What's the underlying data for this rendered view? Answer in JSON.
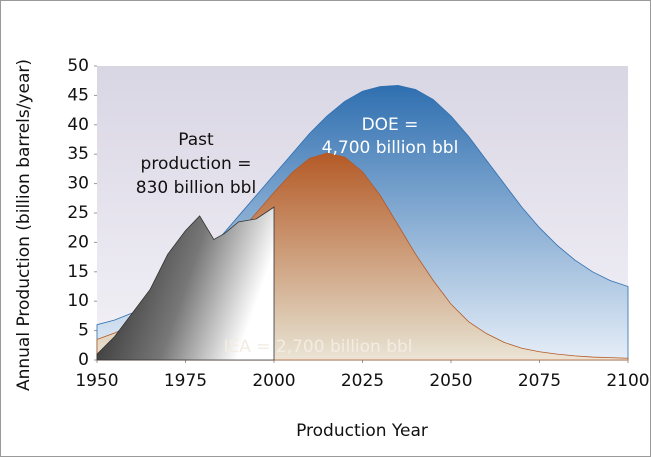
{
  "chart_data": {
    "type": "area",
    "xlabel": "Production Year",
    "ylabel": "Annual Production (billion barrels/year)",
    "xlim": [
      1950,
      2100
    ],
    "xticks": [
      1950,
      1975,
      2000,
      2025,
      2050,
      2075,
      2100
    ],
    "ylim": [
      0,
      50
    ],
    "yticks": [
      0,
      5,
      10,
      15,
      20,
      25,
      30,
      35,
      40,
      45,
      50
    ],
    "series": [
      {
        "name": "DOE",
        "color": "#2f6fb0",
        "x": [
          1950,
          1955,
          1960,
          1965,
          1970,
          1975,
          1980,
          1985,
          1990,
          1995,
          2000,
          2005,
          2010,
          2015,
          2020,
          2025,
          2030,
          2035,
          2040,
          2045,
          2050,
          2055,
          2060,
          2065,
          2070,
          2075,
          2080,
          2085,
          2090,
          2095,
          2100
        ],
        "values": [
          6,
          6.8,
          8,
          9.8,
          12,
          14.8,
          18,
          21,
          24.5,
          28,
          31.5,
          35,
          38.5,
          41.5,
          44,
          45.7,
          46.5,
          46.7,
          46,
          44.3,
          41.5,
          38,
          34,
          30,
          26,
          22.5,
          19.5,
          17,
          15,
          13.5,
          12.5
        ]
      },
      {
        "name": "IEA",
        "color": "#b45a26",
        "x": [
          1950,
          1955,
          1960,
          1965,
          1970,
          1975,
          1980,
          1985,
          1990,
          1995,
          2000,
          2005,
          2010,
          2015,
          2020,
          2025,
          2030,
          2035,
          2040,
          2045,
          2050,
          2055,
          2060,
          2065,
          2070,
          2075,
          2080,
          2085,
          2090,
          2095,
          2100
        ],
        "values": [
          3.5,
          4.6,
          6,
          7.8,
          10,
          12.5,
          15.3,
          18.2,
          21.5,
          25,
          28.5,
          31.8,
          34.3,
          35.2,
          34.5,
          32,
          28,
          23,
          18,
          13.5,
          9.5,
          6.5,
          4.5,
          3,
          2,
          1.4,
          1,
          0.7,
          0.5,
          0.4,
          0.3
        ]
      },
      {
        "name": "Past production",
        "color": "#1a1a1a",
        "x": [
          1950,
          1955,
          1960,
          1965,
          1970,
          1975,
          1979,
          1983,
          1986,
          1990,
          1995,
          2000
        ],
        "values": [
          1,
          4,
          8,
          12,
          18,
          22,
          24.5,
          20.5,
          21.5,
          23.5,
          24,
          26
        ]
      }
    ],
    "annotations": [
      {
        "lines": [
          "Past",
          "production =",
          "830 billion bbl"
        ]
      },
      {
        "lines": [
          "DOE =",
          "4,700 billion bbl"
        ]
      },
      {
        "lines": [
          "IEA = 2,700 billion bbl"
        ]
      }
    ]
  }
}
